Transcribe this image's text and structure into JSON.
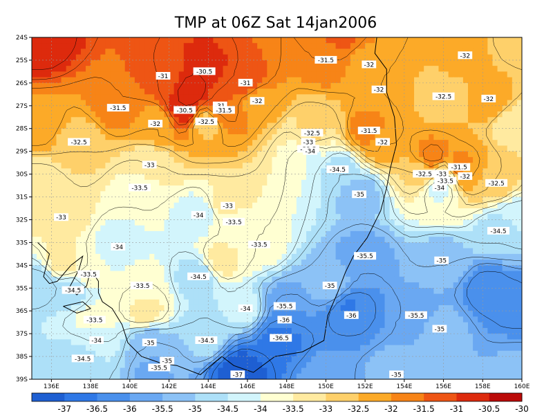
{
  "chart_data": {
    "type": "heatmap",
    "title": "TMP at 06Z Sat 14jan2006",
    "xlabel": "",
    "ylabel": "",
    "x_ticks": [
      "136E",
      "138E",
      "140E",
      "142E",
      "144E",
      "146E",
      "148E",
      "150E",
      "152E",
      "154E",
      "156E",
      "158E",
      "160E"
    ],
    "y_ticks": [
      "24S",
      "25S",
      "26S",
      "27S",
      "28S",
      "29S",
      "30S",
      "31S",
      "32S",
      "33S",
      "34S",
      "35S",
      "36S",
      "37S",
      "38S",
      "39S"
    ],
    "lon_range": [
      135,
      160
    ],
    "lat_range": [
      -39,
      -24
    ],
    "grid": true,
    "legend_position": "bottom",
    "colorbar": {
      "labels": [
        "-37",
        "-36.5",
        "-36",
        "-35.5",
        "-35",
        "-34.5",
        "-34",
        "-33.5",
        "-33",
        "-32.5",
        "-32",
        "-31.5",
        "-31",
        "-30.5",
        "-30"
      ],
      "colors": [
        "#1e5fd2",
        "#2f78e6",
        "#4a90ec",
        "#6aa8f2",
        "#8cc2f6",
        "#ade0f8",
        "#d2f5fc",
        "#ffffd2",
        "#ffeaa0",
        "#fed06a",
        "#fcaa28",
        "#f78417",
        "#ee5514",
        "#dd2a0d",
        "#bb0a08"
      ]
    },
    "contour_labels": [
      {
        "text": "-31.5",
        "lon": 150.0,
        "lat": -25.0
      },
      {
        "text": "-32",
        "lon": 152.2,
        "lat": -25.2
      },
      {
        "text": "-32",
        "lon": 157.1,
        "lat": -24.8
      },
      {
        "text": "-31",
        "lon": 141.7,
        "lat": -25.7
      },
      {
        "text": "-30.5",
        "lon": 143.8,
        "lat": -25.5
      },
      {
        "text": "-31",
        "lon": 145.9,
        "lat": -26.0
      },
      {
        "text": "-32",
        "lon": 152.7,
        "lat": -26.3
      },
      {
        "text": "-32.5",
        "lon": 156.0,
        "lat": -26.6
      },
      {
        "text": "-32",
        "lon": 158.3,
        "lat": -26.7
      },
      {
        "text": "-31",
        "lon": 144.6,
        "lat": -27.0
      },
      {
        "text": "-32",
        "lon": 146.5,
        "lat": -26.8
      },
      {
        "text": "-31.5",
        "lon": 139.4,
        "lat": -27.1
      },
      {
        "text": "-30.5",
        "lon": 142.8,
        "lat": -27.2
      },
      {
        "text": "-31.5",
        "lon": 144.8,
        "lat": -27.2
      },
      {
        "text": "-32",
        "lon": 141.3,
        "lat": -27.8
      },
      {
        "text": "-32.5",
        "lon": 143.9,
        "lat": -27.7
      },
      {
        "text": "-32.5",
        "lon": 149.3,
        "lat": -28.2
      },
      {
        "text": "-31.5",
        "lon": 152.2,
        "lat": -28.1
      },
      {
        "text": "-33",
        "lon": 149.1,
        "lat": -28.6
      },
      {
        "text": "-32",
        "lon": 152.9,
        "lat": -28.6
      },
      {
        "text": "-32.5",
        "lon": 137.4,
        "lat": -28.6
      },
      {
        "text": "-33.5",
        "lon": 149.1,
        "lat": -28.9
      },
      {
        "text": "-34",
        "lon": 149.2,
        "lat": -29.0
      },
      {
        "text": "-33",
        "lon": 141.0,
        "lat": -29.6
      },
      {
        "text": "-34.5",
        "lon": 150.6,
        "lat": -29.8
      },
      {
        "text": "-31.5",
        "lon": 156.8,
        "lat": -29.7
      },
      {
        "text": "-32.5",
        "lon": 155.0,
        "lat": -30.0
      },
      {
        "text": "-33",
        "lon": 155.9,
        "lat": -30.0
      },
      {
        "text": "-32",
        "lon": 157.1,
        "lat": -30.1
      },
      {
        "text": "-33.5",
        "lon": 156.1,
        "lat": -30.3
      },
      {
        "text": "-32.5",
        "lon": 158.7,
        "lat": -30.4
      },
      {
        "text": "-34",
        "lon": 155.8,
        "lat": -30.6
      },
      {
        "text": "-33.5",
        "lon": 140.5,
        "lat": -30.6
      },
      {
        "text": "-35",
        "lon": 151.7,
        "lat": -30.9
      },
      {
        "text": "-33",
        "lon": 145.0,
        "lat": -31.4
      },
      {
        "text": "-34",
        "lon": 143.5,
        "lat": -31.8
      },
      {
        "text": "-33",
        "lon": 136.5,
        "lat": -31.9
      },
      {
        "text": "-33.5",
        "lon": 145.3,
        "lat": -32.1
      },
      {
        "text": "-34.5",
        "lon": 158.8,
        "lat": -32.5
      },
      {
        "text": "-34",
        "lon": 139.4,
        "lat": -33.2
      },
      {
        "text": "-33.5",
        "lon": 146.6,
        "lat": -33.1
      },
      {
        "text": "-35.5",
        "lon": 152.0,
        "lat": -33.6
      },
      {
        "text": "-35",
        "lon": 155.9,
        "lat": -33.8
      },
      {
        "text": "-33.5",
        "lon": 137.9,
        "lat": -34.4
      },
      {
        "text": "-34.5",
        "lon": 143.5,
        "lat": -34.5
      },
      {
        "text": "-34.5",
        "lon": 137.1,
        "lat": -35.1
      },
      {
        "text": "-33.5",
        "lon": 140.6,
        "lat": -34.9
      },
      {
        "text": "-35",
        "lon": 150.2,
        "lat": -34.9
      },
      {
        "text": "-34",
        "lon": 145.9,
        "lat": -35.9
      },
      {
        "text": "-35.5",
        "lon": 147.9,
        "lat": -35.8
      },
      {
        "text": "-36",
        "lon": 151.3,
        "lat": -36.2
      },
      {
        "text": "-35.5",
        "lon": 154.6,
        "lat": -36.2
      },
      {
        "text": "-33.5",
        "lon": 138.2,
        "lat": -36.4
      },
      {
        "text": "-36",
        "lon": 147.9,
        "lat": -36.4
      },
      {
        "text": "-35",
        "lon": 155.8,
        "lat": -36.8
      },
      {
        "text": "-34",
        "lon": 138.3,
        "lat": -37.3
      },
      {
        "text": "-35",
        "lon": 141.0,
        "lat": -37.4
      },
      {
        "text": "-34.5",
        "lon": 143.9,
        "lat": -37.3
      },
      {
        "text": "-36.5",
        "lon": 147.7,
        "lat": -37.2
      },
      {
        "text": "-34.5",
        "lon": 137.6,
        "lat": -38.1
      },
      {
        "text": "-35",
        "lon": 141.9,
        "lat": -38.2
      },
      {
        "text": "-35.5",
        "lon": 141.5,
        "lat": -38.5
      },
      {
        "text": "-37",
        "lon": 145.5,
        "lat": -38.8
      },
      {
        "text": "-35",
        "lon": 153.6,
        "lat": -38.8
      }
    ]
  }
}
